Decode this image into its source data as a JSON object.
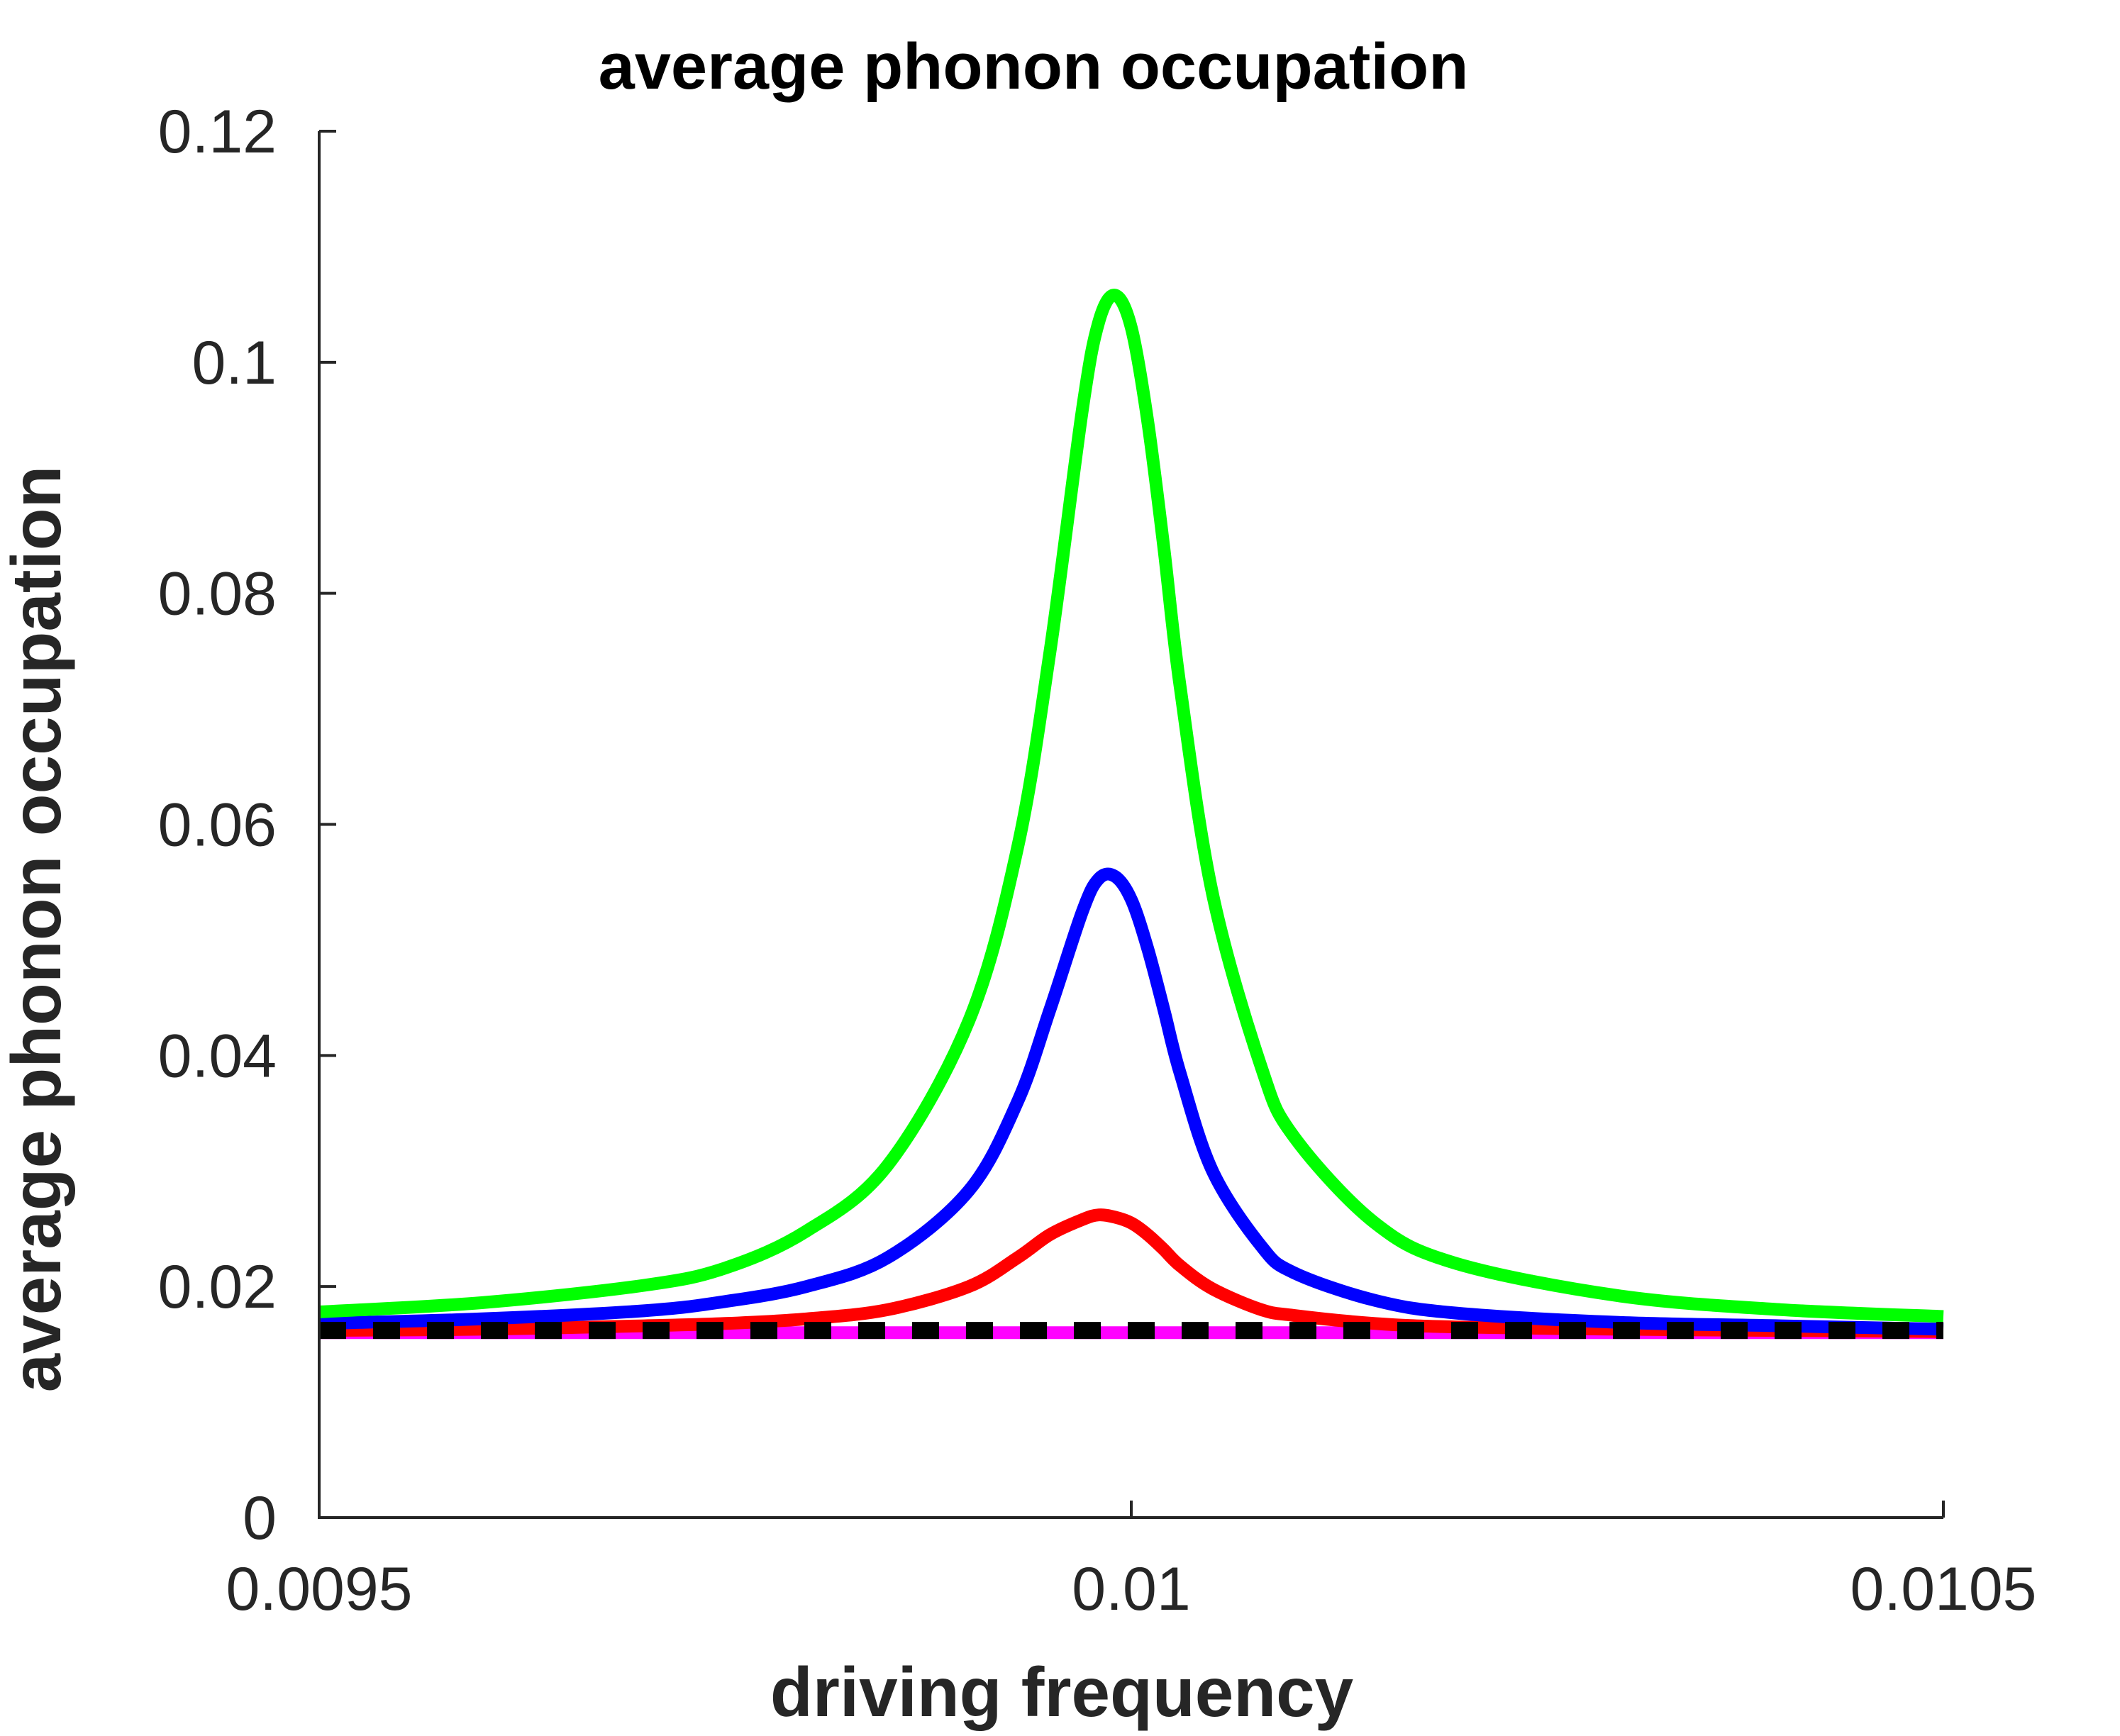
{
  "chart_data": {
    "type": "line",
    "title": "average phonon occupation",
    "xlabel": "driving frequency",
    "ylabel": "average phonon occupation",
    "xlim": [
      0.0095,
      0.0105
    ],
    "ylim": [
      0,
      0.12
    ],
    "xticks": [
      {
        "value": 0.0095,
        "label": "0.0095"
      },
      {
        "value": 0.01,
        "label": "0.01"
      },
      {
        "value": 0.0105,
        "label": "0.0105"
      }
    ],
    "yticks": [
      {
        "value": 0,
        "label": "0"
      },
      {
        "value": 0.02,
        "label": "0.02"
      },
      {
        "value": 0.04,
        "label": "0.04"
      },
      {
        "value": 0.06,
        "label": "0.06"
      },
      {
        "value": 0.08,
        "label": "0.08"
      },
      {
        "value": 0.1,
        "label": "0.1"
      },
      {
        "value": 0.12,
        "label": "0.12"
      }
    ],
    "grid": false,
    "legend": "none",
    "series": [
      {
        "color": "#00ff00",
        "style": "solid",
        "x": [
          0.0095,
          0.0096,
          0.0097,
          0.00975,
          0.0098,
          0.00985,
          0.0099,
          0.00993,
          0.00995,
          0.00997,
          0.00998,
          0.00999,
          0.01,
          0.01001,
          0.01002,
          0.01003,
          0.01005,
          0.01008,
          0.0101,
          0.01015,
          0.0102,
          0.0103,
          0.0104,
          0.0105
        ],
        "y": [
          0.0178,
          0.0186,
          0.0201,
          0.0216,
          0.0248,
          0.0305,
          0.043,
          0.058,
          0.075,
          0.096,
          0.1035,
          0.1058,
          0.103,
          0.095,
          0.084,
          0.072,
          0.054,
          0.039,
          0.033,
          0.0255,
          0.022,
          0.0192,
          0.018,
          0.0174
        ]
      },
      {
        "color": "#0000ff",
        "style": "solid",
        "x": [
          0.0095,
          0.0096,
          0.0097,
          0.00975,
          0.0098,
          0.00985,
          0.0099,
          0.00993,
          0.00995,
          0.00997,
          0.00998,
          0.00999,
          0.01,
          0.01001,
          0.01002,
          0.01003,
          0.01005,
          0.01008,
          0.0101,
          0.01015,
          0.0102,
          0.0103,
          0.0104,
          0.0105
        ],
        "y": [
          0.0168,
          0.0172,
          0.0179,
          0.0187,
          0.02,
          0.0225,
          0.0283,
          0.036,
          0.044,
          0.0525,
          0.0553,
          0.0555,
          0.0535,
          0.0493,
          0.044,
          0.0385,
          0.03,
          0.0235,
          0.0212,
          0.0188,
          0.0177,
          0.0169,
          0.0166,
          0.0163
        ]
      },
      {
        "color": "#ff0000",
        "style": "solid",
        "x": [
          0.0095,
          0.0096,
          0.0097,
          0.00975,
          0.0098,
          0.00985,
          0.0099,
          0.00993,
          0.00995,
          0.00997,
          0.00998,
          0.00999,
          0.01,
          0.01001,
          0.01002,
          0.01003,
          0.01005,
          0.01008,
          0.0101,
          0.01015,
          0.0102,
          0.0103,
          0.0104,
          0.0105
        ],
        "y": [
          0.0162,
          0.0163,
          0.0166,
          0.0168,
          0.0172,
          0.018,
          0.02,
          0.0225,
          0.0245,
          0.0258,
          0.0262,
          0.026,
          0.0255,
          0.0245,
          0.0232,
          0.0218,
          0.0198,
          0.018,
          0.0175,
          0.0168,
          0.0165,
          0.0163,
          0.0162,
          0.0161
        ]
      },
      {
        "color": "#ff00ff",
        "style": "solid",
        "x": [
          0.0095,
          0.0105
        ],
        "y": [
          0.016,
          0.016
        ]
      },
      {
        "color": "#000000",
        "style": "dashed",
        "x": [
          0.0095,
          0.0105
        ],
        "y": [
          0.0162,
          0.0162
        ]
      }
    ]
  }
}
